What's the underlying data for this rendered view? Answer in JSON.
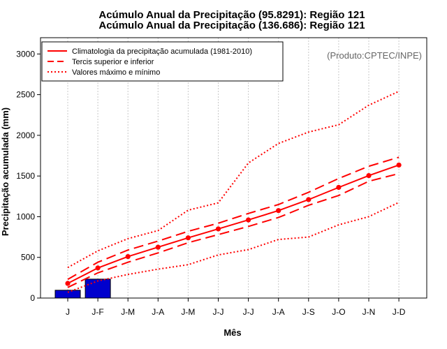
{
  "chart_data": {
    "type": "line",
    "title_lines": [
      "Acúmulo Anual da Precipitação (95.8291): Região 121",
      "Acúmulo Anual da Precipitação (136.686): Região 121"
    ],
    "xlabel": "Mês",
    "ylabel": "Precipitação acumulada (mm)",
    "source_note": "(Produto:CPTEC/INPE)",
    "categories": [
      "J",
      "J-F",
      "J-M",
      "J-A",
      "J-M",
      "J-J",
      "J-J",
      "J-A",
      "J-S",
      "J-O",
      "J-N",
      "J-D"
    ],
    "ylim": [
      0,
      3200
    ],
    "yticks": [
      0,
      500,
      1000,
      1500,
      2000,
      2500,
      3000
    ],
    "grid": "vertical dotted",
    "legend": {
      "position": "top-left",
      "entries": [
        {
          "label": "Climatologia da precipitação acumulada (1981-2010)",
          "style": "solid"
        },
        {
          "label": "Tercis superior e inferior",
          "style": "dashed"
        },
        {
          "label": "Valores máximo e mínimo",
          "style": "dotted"
        }
      ]
    },
    "series": [
      {
        "name": "Climatologia da precipitação acumulada (1981-2010)",
        "style": "solid",
        "markers": true,
        "values": [
          180,
          370,
          510,
          625,
          740,
          850,
          960,
          1075,
          1210,
          1360,
          1505,
          1635
        ]
      },
      {
        "name": "Tercil superior",
        "style": "dashed",
        "values": [
          230,
          440,
          590,
          700,
          820,
          920,
          1040,
          1150,
          1300,
          1470,
          1620,
          1730
        ]
      },
      {
        "name": "Tercil inferior",
        "style": "dashed",
        "values": [
          130,
          310,
          440,
          555,
          680,
          780,
          880,
          990,
          1140,
          1260,
          1435,
          1530
        ]
      },
      {
        "name": "Valor máximo",
        "style": "dotted",
        "values": [
          375,
          580,
          730,
          830,
          1080,
          1170,
          1660,
          1900,
          2040,
          2130,
          2370,
          2540
        ]
      },
      {
        "name": "Valor mínimo",
        "style": "dotted",
        "values": [
          70,
          210,
          290,
          355,
          410,
          530,
          595,
          720,
          750,
          900,
          1000,
          1175
        ]
      }
    ],
    "bars": {
      "name": "Precipitação observada acumulada",
      "categories": [
        "J",
        "J-F"
      ],
      "values": [
        95.8291,
        232.5151
      ]
    },
    "colors": {
      "lines": "#ff0000",
      "bars": "#0000cd",
      "bar_border": "#000000",
      "grid": "#c8c8c8",
      "source_note": "#666666"
    }
  }
}
